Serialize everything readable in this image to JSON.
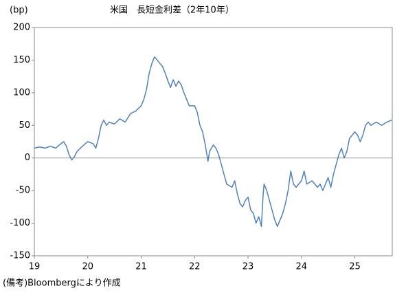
{
  "chart_data": {
    "type": "line",
    "title": "米国　長短金利差（2年10年）",
    "y_label": "(bp)",
    "note": "(備考)Bloombergにより作成",
    "x": [
      19.0,
      19.1,
      19.2,
      19.3,
      19.4,
      19.5,
      19.55,
      19.6,
      19.65,
      19.7,
      19.75,
      19.8,
      19.9,
      20.0,
      20.1,
      20.15,
      20.2,
      20.25,
      20.3,
      20.35,
      20.4,
      20.5,
      20.6,
      20.7,
      20.8,
      20.9,
      21.0,
      21.05,
      21.1,
      21.15,
      21.2,
      21.25,
      21.3,
      21.35,
      21.4,
      21.45,
      21.5,
      21.55,
      21.6,
      21.65,
      21.7,
      21.75,
      21.8,
      21.85,
      21.9,
      22.0,
      22.05,
      22.1,
      22.15,
      22.2,
      22.25,
      22.28,
      22.35,
      22.4,
      22.45,
      22.5,
      22.55,
      22.6,
      22.7,
      22.75,
      22.8,
      22.85,
      22.9,
      22.95,
      23.0,
      23.05,
      23.1,
      23.15,
      23.2,
      23.25,
      23.28,
      23.3,
      23.35,
      23.4,
      23.45,
      23.5,
      23.55,
      23.6,
      23.65,
      23.7,
      23.75,
      23.8,
      23.85,
      23.9,
      24.0,
      24.05,
      24.1,
      24.2,
      24.3,
      24.35,
      24.4,
      24.45,
      24.5,
      24.55,
      24.6,
      24.65,
      24.7,
      24.75,
      24.8,
      24.85,
      24.9,
      25.0,
      25.05,
      25.1,
      25.15,
      25.2,
      25.25,
      25.3,
      25.4,
      25.5,
      25.6,
      25.69
    ],
    "series": [
      {
        "name": "長短金利差",
        "color": "#4f81bd",
        "values": [
          15,
          17,
          15,
          18,
          15,
          22,
          25,
          18,
          5,
          -3,
          2,
          10,
          18,
          25,
          22,
          15,
          30,
          50,
          58,
          50,
          55,
          52,
          60,
          55,
          68,
          72,
          80,
          90,
          105,
          130,
          145,
          155,
          150,
          145,
          140,
          130,
          118,
          108,
          120,
          110,
          118,
          112,
          100,
          90,
          80,
          80,
          70,
          50,
          40,
          20,
          -5,
          10,
          20,
          15,
          5,
          -10,
          -25,
          -40,
          -45,
          -35,
          -55,
          -70,
          -75,
          -65,
          -60,
          -80,
          -85,
          -100,
          -90,
          -105,
          -60,
          -40,
          -50,
          -65,
          -80,
          -95,
          -105,
          -95,
          -85,
          -70,
          -50,
          -20,
          -40,
          -45,
          -35,
          -20,
          -40,
          -35,
          -45,
          -40,
          -50,
          -40,
          -30,
          -45,
          -25,
          -10,
          5,
          15,
          0,
          10,
          30,
          40,
          35,
          25,
          35,
          50,
          55,
          50,
          55,
          50,
          55,
          58
        ]
      }
    ],
    "xlim": [
      19,
      25.7
    ],
    "xticks": [
      19,
      20,
      21,
      22,
      23,
      24,
      25
    ],
    "ylim": [
      -150,
      200
    ],
    "yticks": [
      -150,
      -100,
      -50,
      0,
      50,
      100,
      150,
      200
    ],
    "zero_line": true
  }
}
